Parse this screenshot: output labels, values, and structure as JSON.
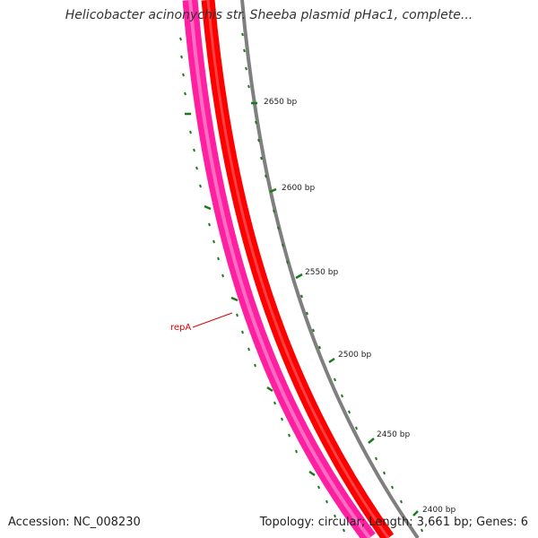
{
  "title": "Helicobacter acinonychis str. Sheeba plasmid pHac1, complete...",
  "footer": {
    "accession": "Accession: NC_008230",
    "summary": "Topology: circular; Length: 3,661 bp; Genes: 6"
  },
  "colors": {
    "gene_pink": "#ff1fa0",
    "gene_red": "#ff0000",
    "backbone_gray": "#7f7f7f",
    "ticks_green": "#1a7a1a",
    "label_red": "#dd0000",
    "tick_label": "#222222"
  },
  "tick_labels": [
    {
      "label": "2650 bp"
    },
    {
      "label": "2600 bp"
    },
    {
      "label": "2550 bp"
    },
    {
      "label": "2500 bp"
    },
    {
      "label": "2450 bp"
    },
    {
      "label": "2400 bp"
    }
  ],
  "gene_label": {
    "label": "repA"
  }
}
